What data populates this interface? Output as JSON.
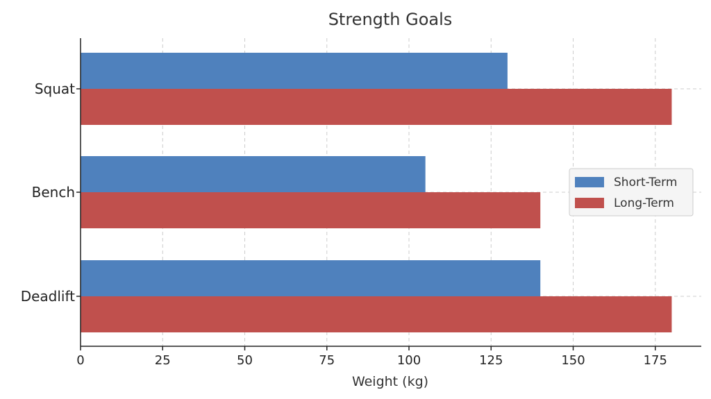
{
  "chart_data": {
    "type": "bar",
    "orientation": "horizontal",
    "title": "Strength Goals",
    "xlabel": "Weight (kg)",
    "ylabel": "",
    "categories": [
      "Squat",
      "Bench",
      "Deadlift"
    ],
    "series": [
      {
        "name": "Short-Term",
        "values": [
          130,
          105,
          140
        ],
        "color": "#4f81bd"
      },
      {
        "name": "Long-Term",
        "values": [
          180,
          140,
          180
        ],
        "color": "#c0504d"
      }
    ],
    "xlim": [
      0,
      189
    ],
    "xticks": [
      0,
      25,
      50,
      75,
      100,
      125,
      150,
      175
    ],
    "grid": true,
    "legend_position": "center-right"
  }
}
